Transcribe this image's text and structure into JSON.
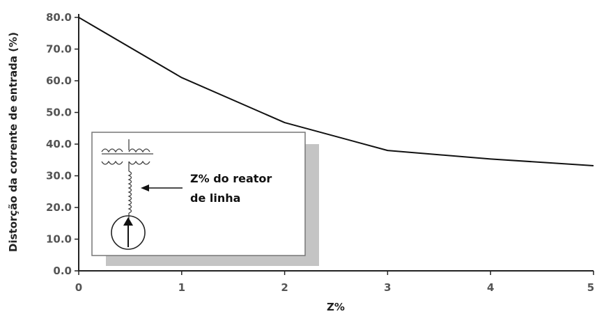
{
  "chart_data": {
    "type": "line",
    "title": "",
    "xlabel": "Z%",
    "ylabel": "Distorção da corrente de entrada (%)",
    "xlim": [
      0,
      5
    ],
    "ylim": [
      0,
      80
    ],
    "x_ticks": [
      "0",
      "1",
      "2",
      "3",
      "4",
      "5"
    ],
    "y_ticks": [
      "0.0",
      "10.0",
      "20.0",
      "30.0",
      "40.0",
      "50.0",
      "60.0",
      "70.0",
      "80.0"
    ],
    "series": [
      {
        "x": [
          0,
          1,
          2,
          3,
          4,
          5
        ],
        "y": [
          80,
          61,
          46.8,
          38,
          35.3,
          33.2
        ]
      }
    ],
    "grid": false,
    "legend": "none",
    "line_color": "#111111",
    "inset": {
      "label_line1": "Z% do reator",
      "label_line2": "de linha",
      "shadow_color": "#c4c4c4"
    }
  }
}
